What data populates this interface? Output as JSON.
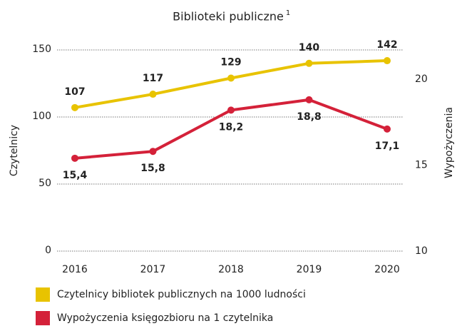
{
  "chart_data": {
    "type": "line",
    "title": "Biblioteki publiczne",
    "title_note": "1",
    "ylabel": "Czytelnicy",
    "y2label": "Wypożyczenia",
    "categories": [
      "2016",
      "2017",
      "2018",
      "2019",
      "2020"
    ],
    "ylim": [
      0,
      150
    ],
    "yticks": [
      0,
      50,
      100,
      150
    ],
    "y2lim": [
      10,
      21.7
    ],
    "y2ticks": [
      10,
      15,
      20
    ],
    "grid": true,
    "legend": "bottom",
    "series": [
      {
        "name": "Czytelnicy bibliotek publicznych na 1000 ludności",
        "color": "#e8c300",
        "values": [
          107,
          117,
          129,
          140,
          142
        ]
      },
      {
        "name": "Wypożyczenia księgozbioru na 1 czytelnika",
        "color": "#d42139",
        "axis": "y2",
        "values": [
          15.4,
          15.8,
          18.2,
          18.8,
          17.1
        ],
        "value_labels": [
          "15,4",
          "15,8",
          "18,2",
          "18,8",
          "17,1"
        ]
      }
    ]
  }
}
